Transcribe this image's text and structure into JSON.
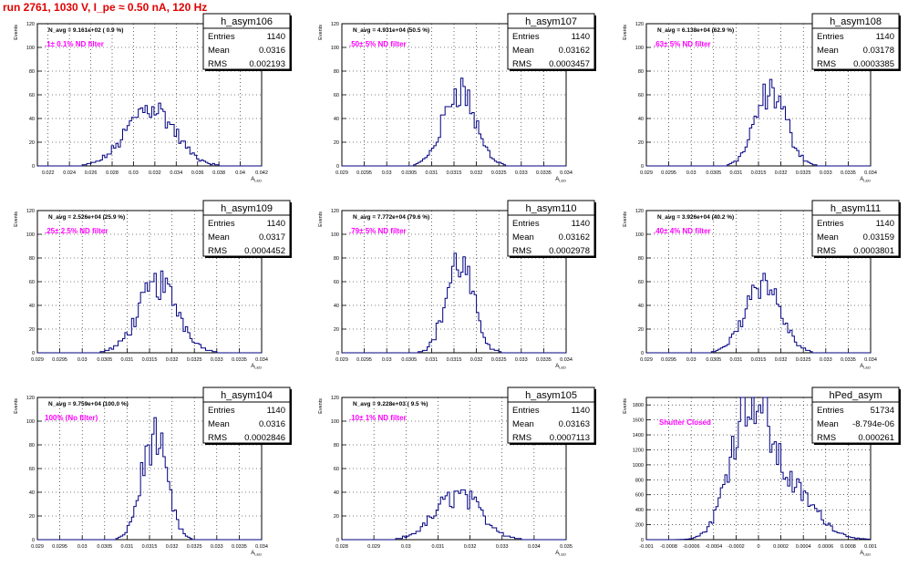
{
  "page": {
    "title": "run 2761,  1030 V, I_pe ≈ 0.50 nA, 120 Hz"
  },
  "colors": {
    "histogram": "#000080",
    "annotation": "#ff00ff",
    "title": "#e00000",
    "grid": "#000000"
  },
  "chart_data": [
    {
      "type": "bar",
      "name": "h_asym106",
      "ylabel": "Events",
      "xlabel": "A_LED",
      "ylim": [
        0,
        120
      ],
      "yticks": [
        0,
        20,
        40,
        60,
        80,
        100,
        120
      ],
      "xlim": [
        0.021,
        0.042
      ],
      "xticks": [
        0.022,
        0.024,
        0.026,
        0.028,
        0.03,
        0.032,
        0.034,
        0.036,
        0.038,
        0.04,
        0.042
      ],
      "xticklabels": [
        "0.022",
        "0.024",
        "0.026",
        "0.028",
        "0.03",
        "0.032",
        "0.034",
        "0.036",
        "0.038",
        "0.04",
        "0.042"
      ],
      "navg": "N_avg = 9.161e+02 ( 0.9 %)",
      "filter": ".1± 0.1% ND filter",
      "stats": [
        [
          "Entries",
          "1140"
        ],
        [
          "Mean",
          "0.0316"
        ],
        [
          "RMS",
          "0.002193"
        ]
      ],
      "shape": {
        "mean": 0.0316,
        "sigma": 0.0022,
        "peak": 50
      }
    },
    {
      "type": "bar",
      "name": "h_asym107",
      "ylabel": "Events",
      "xlabel": "A_LED",
      "ylim": [
        0,
        120
      ],
      "yticks": [
        0,
        20,
        40,
        60,
        80,
        100,
        120
      ],
      "xlim": [
        0.029,
        0.034
      ],
      "xticks": [
        0.029,
        0.0295,
        0.03,
        0.0305,
        0.031,
        0.0315,
        0.032,
        0.0325,
        0.033,
        0.0335,
        0.034
      ],
      "xticklabels": [
        "0.029",
        "0.0295",
        "0.03",
        "0.0305",
        "0.031",
        "0.0315",
        "0.032",
        "0.0325",
        "0.033",
        "0.0335",
        "0.034"
      ],
      "navg": "N_avg = 4.931e+04 (50.5 %)",
      "filter": ".50± 5% ND filter",
      "stats": [
        [
          "Entries",
          "1140"
        ],
        [
          "Mean",
          "0.03162"
        ],
        [
          "RMS",
          "0.0003457"
        ]
      ],
      "shape": {
        "mean": 0.03162,
        "sigma": 0.00035,
        "peak": 65
      }
    },
    {
      "type": "bar",
      "name": "h_asym108",
      "ylabel": "Events",
      "xlabel": "A_LED",
      "ylim": [
        0,
        120
      ],
      "yticks": [
        0,
        20,
        40,
        60,
        80,
        100,
        120
      ],
      "xlim": [
        0.029,
        0.034
      ],
      "xticks": [
        0.029,
        0.0295,
        0.03,
        0.0305,
        0.031,
        0.0315,
        0.032,
        0.0325,
        0.033,
        0.0335,
        0.034
      ],
      "xticklabels": [
        "0.029",
        "0.0295",
        "0.03",
        "0.0305",
        "0.031",
        "0.0315",
        "0.032",
        "0.0325",
        "0.033",
        "0.0335",
        "0.034"
      ],
      "navg": "N_avg = 6.138e+04 (62.9 %)",
      "filter": ".63± 5% ND filter",
      "stats": [
        [
          "Entries",
          "1140"
        ],
        [
          "Mean",
          "0.03178"
        ],
        [
          "RMS",
          "0.0003385"
        ]
      ],
      "shape": {
        "mean": 0.03178,
        "sigma": 0.00034,
        "peak": 63
      }
    },
    {
      "type": "bar",
      "name": "h_asym109",
      "ylabel": "Events",
      "xlabel": "A_LED",
      "ylim": [
        0,
        120
      ],
      "yticks": [
        0,
        20,
        40,
        60,
        80,
        100,
        120
      ],
      "xlim": [
        0.029,
        0.034
      ],
      "xticks": [
        0.029,
        0.0295,
        0.03,
        0.0305,
        0.031,
        0.0315,
        0.032,
        0.0325,
        0.033,
        0.0335,
        0.034
      ],
      "xticklabels": [
        "0.029",
        "0.0295",
        "0.03",
        "0.0305",
        "0.031",
        "0.0315",
        "0.032",
        "0.0325",
        "0.033",
        "0.0335",
        "0.034"
      ],
      "navg": "N_avg = 2.526e+04 (25.9 %)",
      "filter": ".25± 2.5% ND filter",
      "stats": [
        [
          "Entries",
          "1140"
        ],
        [
          "Mean",
          "0.0317"
        ],
        [
          "RMS",
          "0.0004452"
        ]
      ],
      "shape": {
        "mean": 0.0317,
        "sigma": 0.00044,
        "peak": 58
      }
    },
    {
      "type": "bar",
      "name": "h_asym110",
      "ylabel": "Events",
      "xlabel": "A_LED",
      "ylim": [
        0,
        120
      ],
      "yticks": [
        0,
        20,
        40,
        60,
        80,
        100,
        120
      ],
      "xlim": [
        0.029,
        0.034
      ],
      "xticks": [
        0.029,
        0.0295,
        0.03,
        0.0305,
        0.031,
        0.0315,
        0.032,
        0.0325,
        0.033,
        0.0335,
        0.034
      ],
      "xticklabels": [
        "0.029",
        "0.0295",
        "0.03",
        "0.0305",
        "0.031",
        "0.0315",
        "0.032",
        "0.0325",
        "0.033",
        "0.0335",
        "0.034"
      ],
      "navg": "N_avg = 7.772e+04 (79.6 %)",
      "filter": ".79± 5% ND filter",
      "stats": [
        [
          "Entries",
          "1140"
        ],
        [
          "Mean",
          "0.03162"
        ],
        [
          "RMS",
          "0.0002978"
        ]
      ],
      "shape": {
        "mean": 0.03162,
        "sigma": 0.0003,
        "peak": 76
      }
    },
    {
      "type": "bar",
      "name": "h_asym111",
      "ylabel": "Events",
      "xlabel": "A_LED",
      "ylim": [
        0,
        120
      ],
      "yticks": [
        0,
        20,
        40,
        60,
        80,
        100,
        120
      ],
      "xlim": [
        0.029,
        0.034
      ],
      "xticks": [
        0.029,
        0.0295,
        0.03,
        0.0305,
        0.031,
        0.0315,
        0.032,
        0.0325,
        0.033,
        0.0335,
        0.034
      ],
      "xticklabels": [
        "0.029",
        "0.0295",
        "0.03",
        "0.0305",
        "0.031",
        "0.0315",
        "0.032",
        "0.0325",
        "0.033",
        "0.0335",
        "0.034"
      ],
      "navg": "N_avg = 3.926e+04 (40.2 %)",
      "filter": ".40± 4% ND filter",
      "stats": [
        [
          "Entries",
          "1140"
        ],
        [
          "Mean",
          "0.03159"
        ],
        [
          "RMS",
          "0.0003801"
        ]
      ],
      "shape": {
        "mean": 0.03159,
        "sigma": 0.00038,
        "peak": 62
      }
    },
    {
      "type": "bar",
      "name": "h_asym104",
      "ylabel": "Events",
      "xlabel": "A_LED",
      "ylim": [
        0,
        120
      ],
      "yticks": [
        0,
        20,
        40,
        60,
        80,
        100,
        120
      ],
      "xlim": [
        0.029,
        0.034
      ],
      "xticks": [
        0.029,
        0.0295,
        0.03,
        0.0305,
        0.031,
        0.0315,
        0.032,
        0.0325,
        0.033,
        0.0335,
        0.034
      ],
      "xticklabels": [
        "0.029",
        "0.0295",
        "0.03",
        "0.0305",
        "0.031",
        "0.0315",
        "0.032",
        "0.0325",
        "0.033",
        "0.0335",
        "0.034"
      ],
      "navg": "N_avg = 9.759e+04 (100.0 %)",
      "filter": "100% (No filter)",
      "stats": [
        [
          "Entries",
          "1140"
        ],
        [
          "Mean",
          "0.0316"
        ],
        [
          "RMS",
          "0.0002846"
        ]
      ],
      "shape": {
        "mean": 0.0316,
        "sigma": 0.00028,
        "peak": 86
      }
    },
    {
      "type": "bar",
      "name": "h_asym105",
      "ylabel": "Events",
      "xlabel": "A_LED",
      "ylim": [
        0,
        120
      ],
      "yticks": [
        0,
        20,
        40,
        60,
        80,
        100,
        120
      ],
      "xlim": [
        0.028,
        0.035
      ],
      "xticks": [
        0.028,
        0.029,
        0.03,
        0.031,
        0.032,
        0.033,
        0.034,
        0.035
      ],
      "xticklabels": [
        "0.028",
        "0.029",
        "0.03",
        "0.031",
        "0.032",
        "0.033",
        "0.034",
        "0.035"
      ],
      "navg": "N_avg = 9.228e+03 ( 9.5 %)",
      "filter": ".10± 1% ND filter",
      "stats": [
        [
          "Entries",
          "1140"
        ],
        [
          "Mean",
          "0.03163"
        ],
        [
          "RMS",
          "0.0007113"
        ]
      ],
      "shape": {
        "mean": 0.03163,
        "sigma": 0.0007,
        "peak": 38
      }
    },
    {
      "type": "bar",
      "name": "hPed_asym",
      "ylabel": "Events",
      "xlabel": "A_LED",
      "ylim": [
        0,
        1900
      ],
      "yticks": [
        0,
        200,
        400,
        600,
        800,
        1000,
        1200,
        1400,
        1600,
        1800
      ],
      "xlim": [
        -0.001,
        0.001
      ],
      "xticks": [
        -0.001,
        -0.0008,
        -0.0006,
        -0.0004,
        -0.0002,
        0,
        0.0002,
        0.0004,
        0.0006,
        0.0008,
        0.001
      ],
      "xticklabels": [
        "-0.001",
        "-0.0008",
        "-0.0006",
        "-0.0004",
        "-0.0002",
        "0",
        "0.0002",
        "0.0004",
        "0.0006",
        "0.0008",
        "0.001"
      ],
      "navg": "",
      "filter": "Shutter Closed",
      "stats": [
        [
          "Entries",
          "51734"
        ],
        [
          "Mean",
          "-8.794e-06"
        ],
        [
          "RMS",
          "0.000261"
        ]
      ],
      "shape": {
        "mean": -8e-05,
        "sigma": 0.00017,
        "peak": 1800,
        "shoulder": {
          "mean": 0.0003,
          "sigma": 0.00022,
          "peak": 620
        }
      }
    }
  ]
}
